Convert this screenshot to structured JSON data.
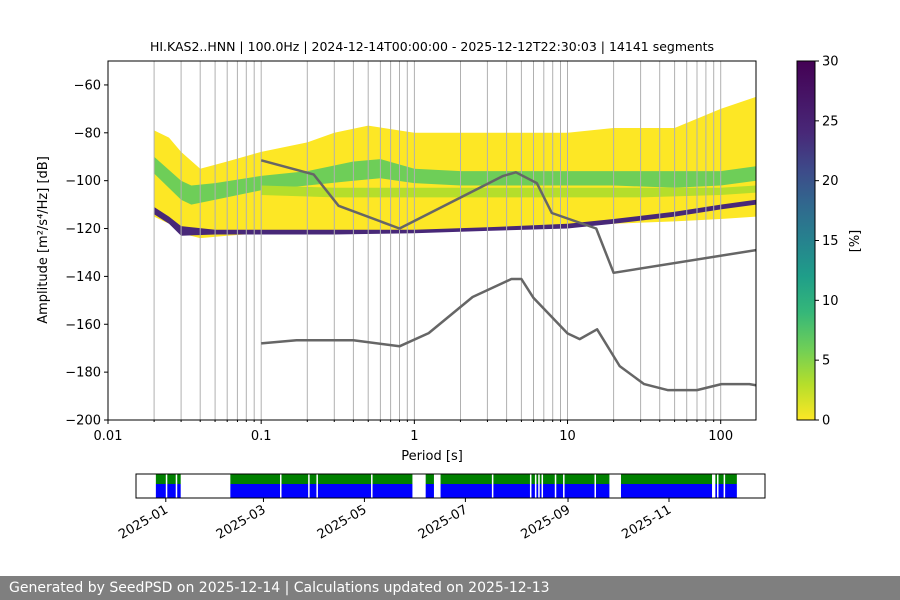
{
  "chart_data": {
    "type": "heatmap",
    "title": "HI.KAS2..HNN | 100.0Hz | 2024-12-14T00:00:00 - 2025-12-12T22:30:03 | 14141 segments",
    "xlabel": "Period [s]",
    "ylabel": "Amplitude [m²/s⁴/Hz] [dB]",
    "xscale": "log",
    "xlim": [
      0.01,
      170
    ],
    "ylim": [
      -200,
      -50
    ],
    "x_ticks": [
      0.01,
      0.1,
      1,
      10,
      100
    ],
    "x_tick_labels": [
      "0.01",
      "0.1",
      "1",
      "10",
      "100"
    ],
    "y_ticks": [
      -200,
      -180,
      -160,
      -140,
      -120,
      -100,
      -80,
      -60
    ],
    "y_tick_labels": [
      "−200",
      "−180",
      "−160",
      "−140",
      "−120",
      "−100",
      "−80",
      "−60"
    ],
    "colorbar": {
      "label": "[%]",
      "range": [
        0,
        30
      ],
      "ticks": [
        0,
        5,
        10,
        15,
        20,
        25,
        30
      ],
      "tick_labels": [
        "0",
        "5",
        "10",
        "15",
        "20",
        "25",
        "30"
      ]
    },
    "noise_models": [
      {
        "name": "high noise model",
        "x": [
          0.1,
          0.22,
          0.32,
          0.8,
          3.8,
          4.6,
          6.3,
          7.9,
          15.4,
          20,
          170
        ],
        "y": [
          -91.5,
          -97.4,
          -110.5,
          -120,
          -98,
          -96.5,
          -101,
          -113.5,
          -120,
          -138.5,
          -129
        ]
      },
      {
        "name": "low noise model",
        "x": [
          0.1,
          0.17,
          0.4,
          0.8,
          1.24,
          2.4,
          4.3,
          5,
          6,
          10,
          12,
          15.6,
          21.9,
          31.6,
          45,
          70,
          101,
          154,
          170
        ],
        "y": [
          -168,
          -166.7,
          -166.7,
          -169.2,
          -163.7,
          -148.6,
          -141.1,
          -141.1,
          -149,
          -163.8,
          -166.2,
          -162.1,
          -177.5,
          -185,
          -187.5,
          -187.5,
          -185,
          -185,
          -185.5
        ]
      }
    ],
    "density_bands": [
      {
        "name": "outer envelope",
        "percent": 2,
        "x": [
          0.02,
          0.025,
          0.03,
          0.04,
          0.06,
          0.1,
          0.2,
          0.3,
          0.5,
          1,
          2,
          5,
          10,
          20,
          50,
          100,
          170
        ],
        "upper": [
          -79,
          -82,
          -88,
          -95,
          -92,
          -88,
          -84,
          -80,
          -77,
          -80,
          -80,
          -80,
          -80,
          -78,
          -78,
          -70,
          -65
        ],
        "lower": [
          -115,
          -118,
          -122,
          -124,
          -123,
          -122,
          -121,
          -121,
          -121,
          -121,
          -120.5,
          -120,
          -119,
          -118,
          -117,
          -116,
          -115
        ]
      },
      {
        "name": "central band",
        "percent": 6,
        "x": [
          0.02,
          0.03,
          0.035,
          0.05,
          0.1,
          0.2,
          0.4,
          0.6,
          1,
          2,
          5,
          10,
          20,
          50,
          100,
          170
        ],
        "upper": [
          -90,
          -100,
          -102,
          -101,
          -98,
          -96,
          -92,
          -91,
          -95,
          -96,
          -96,
          -96,
          -96,
          -96,
          -96,
          -94
        ],
        "lower": [
          -97,
          -108,
          -110,
          -108,
          -104,
          -102,
          -100,
          -99,
          -101,
          -102,
          -102,
          -102,
          -102,
          -103,
          -102,
          -100
        ]
      },
      {
        "name": "secondary band",
        "percent": 4,
        "x": [
          0.1,
          0.3,
          1,
          3,
          10,
          30,
          100,
          170
        ],
        "upper": [
          -102,
          -103,
          -103,
          -103,
          -103,
          -103,
          -103,
          -102
        ],
        "lower": [
          -106,
          -107,
          -107,
          -107,
          -107,
          -107,
          -106,
          -105
        ]
      },
      {
        "name": "low-amplitude floor",
        "percent": 28,
        "x": [
          0.02,
          0.025,
          0.03,
          0.05,
          0.1,
          0.3,
          1,
          3,
          10,
          20,
          50,
          100,
          170
        ],
        "upper": [
          -111,
          -115,
          -119,
          -120.5,
          -120.5,
          -120.5,
          -120.5,
          -119.5,
          -118,
          -116,
          -113,
          -110,
          -108
        ],
        "lower": [
          -114,
          -118,
          -123,
          -122.5,
          -122.5,
          -122.5,
          -122,
          -121,
          -120,
          -118,
          -115,
          -112,
          -110
        ]
      }
    ],
    "vertical_lines_x": [
      0.02,
      0.03,
      0.04,
      0.05,
      0.06,
      0.07,
      0.08,
      0.09,
      0.1,
      0.2,
      0.3,
      0.4,
      0.5,
      0.6,
      0.7,
      0.8,
      0.9,
      1,
      2,
      3,
      4,
      5,
      6,
      7,
      8,
      9,
      10,
      20,
      30,
      40,
      50,
      60,
      70,
      80,
      90,
      100
    ],
    "availability": {
      "xlim": [
        "2024-12-14",
        "2025-12-29"
      ],
      "date_ticks": [
        {
          "date": "2025-01-01",
          "label": "2025-01"
        },
        {
          "date": "2025-03-01",
          "label": "2025-03"
        },
        {
          "date": "2025-05-01",
          "label": "2025-05"
        },
        {
          "date": "2025-07-01",
          "label": "2025-07"
        },
        {
          "date": "2025-09-01",
          "label": "2025-09"
        },
        {
          "date": "2025-11-01",
          "label": "2025-11"
        }
      ],
      "data_segments": [
        [
          "2024-12-26",
          "2025-01-10"
        ],
        [
          "2025-02-09",
          "2025-05-30"
        ],
        [
          "2025-06-07",
          "2025-06-12"
        ],
        [
          "2025-06-16",
          "2025-09-26"
        ],
        [
          "2025-10-03",
          "2025-11-27"
        ],
        [
          "2025-11-29",
          "2025-12-12"
        ]
      ],
      "gaps": [
        "2025-01-01",
        "2025-01-07",
        "2025-03-11",
        "2025-03-28",
        "2025-04-02",
        "2025-05-05",
        "2025-06-01",
        "2025-07-17",
        "2025-08-09",
        "2025-08-12",
        "2025-08-14",
        "2025-08-16",
        "2025-08-24",
        "2025-08-29",
        "2025-09-17",
        "2025-11-30",
        "2025-12-04"
      ],
      "colors": {
        "data": "#0000ff",
        "processed": "#008000"
      }
    }
  },
  "footer": {
    "text": "Generated by SeedPSD on 2025-12-14 | Calculations updated on 2025-12-13"
  }
}
